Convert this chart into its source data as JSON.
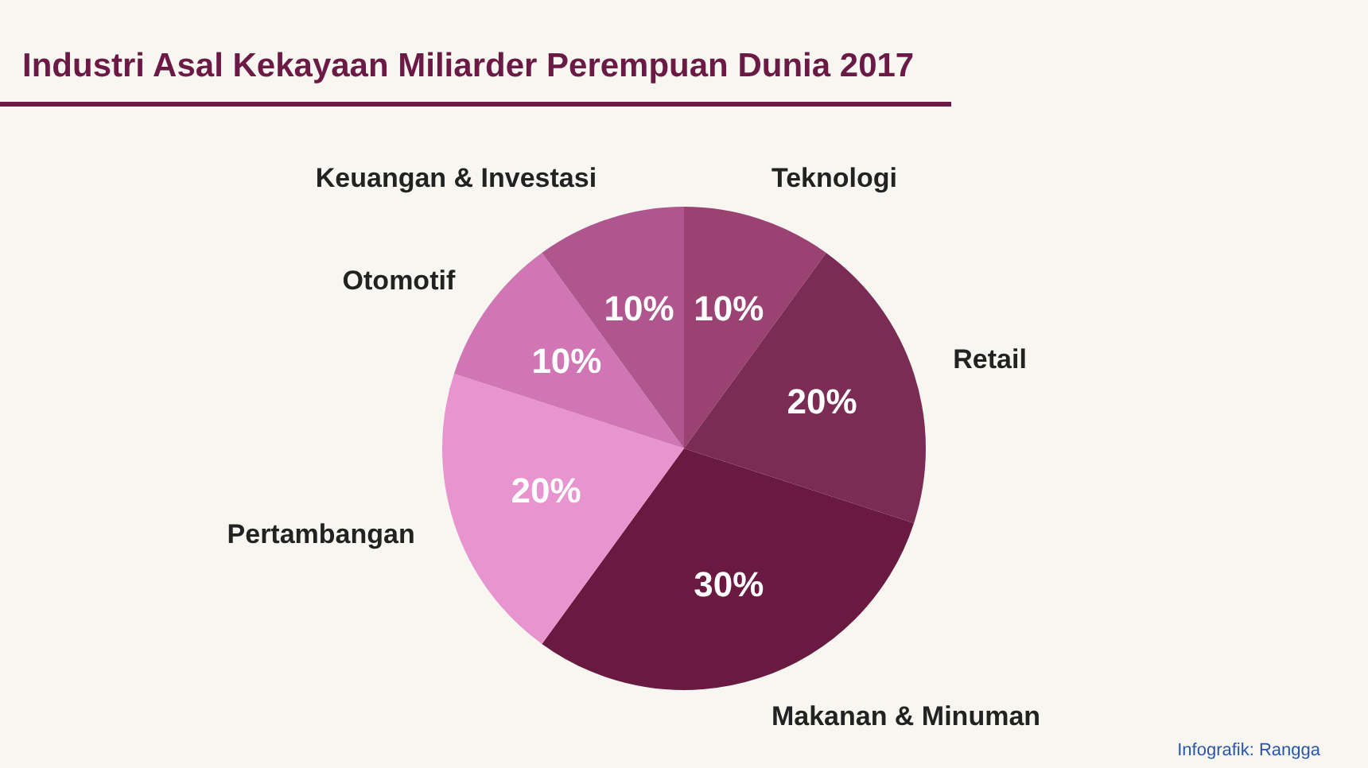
{
  "chart_data": {
    "type": "pie",
    "title": "Industri Asal Kekayaan Miliarder Perempuan Dunia 2017",
    "categories": [
      "Teknologi",
      "Retail",
      "Makanan & Minuman",
      "Pertambangan",
      "Otomotif",
      "Keuangan & Investasi"
    ],
    "values": [
      10,
      20,
      30,
      20,
      10,
      10
    ],
    "value_labels": [
      "10%",
      "20%",
      "30%",
      "20%",
      "10%",
      "10%"
    ],
    "colors": [
      "#9a4272",
      "#7b2c55",
      "#6a1a40",
      "#e894cf",
      "#d176b5",
      "#b0568e"
    ],
    "legend": false,
    "annotations": [
      "Infografik: Rangga"
    ]
  }
}
